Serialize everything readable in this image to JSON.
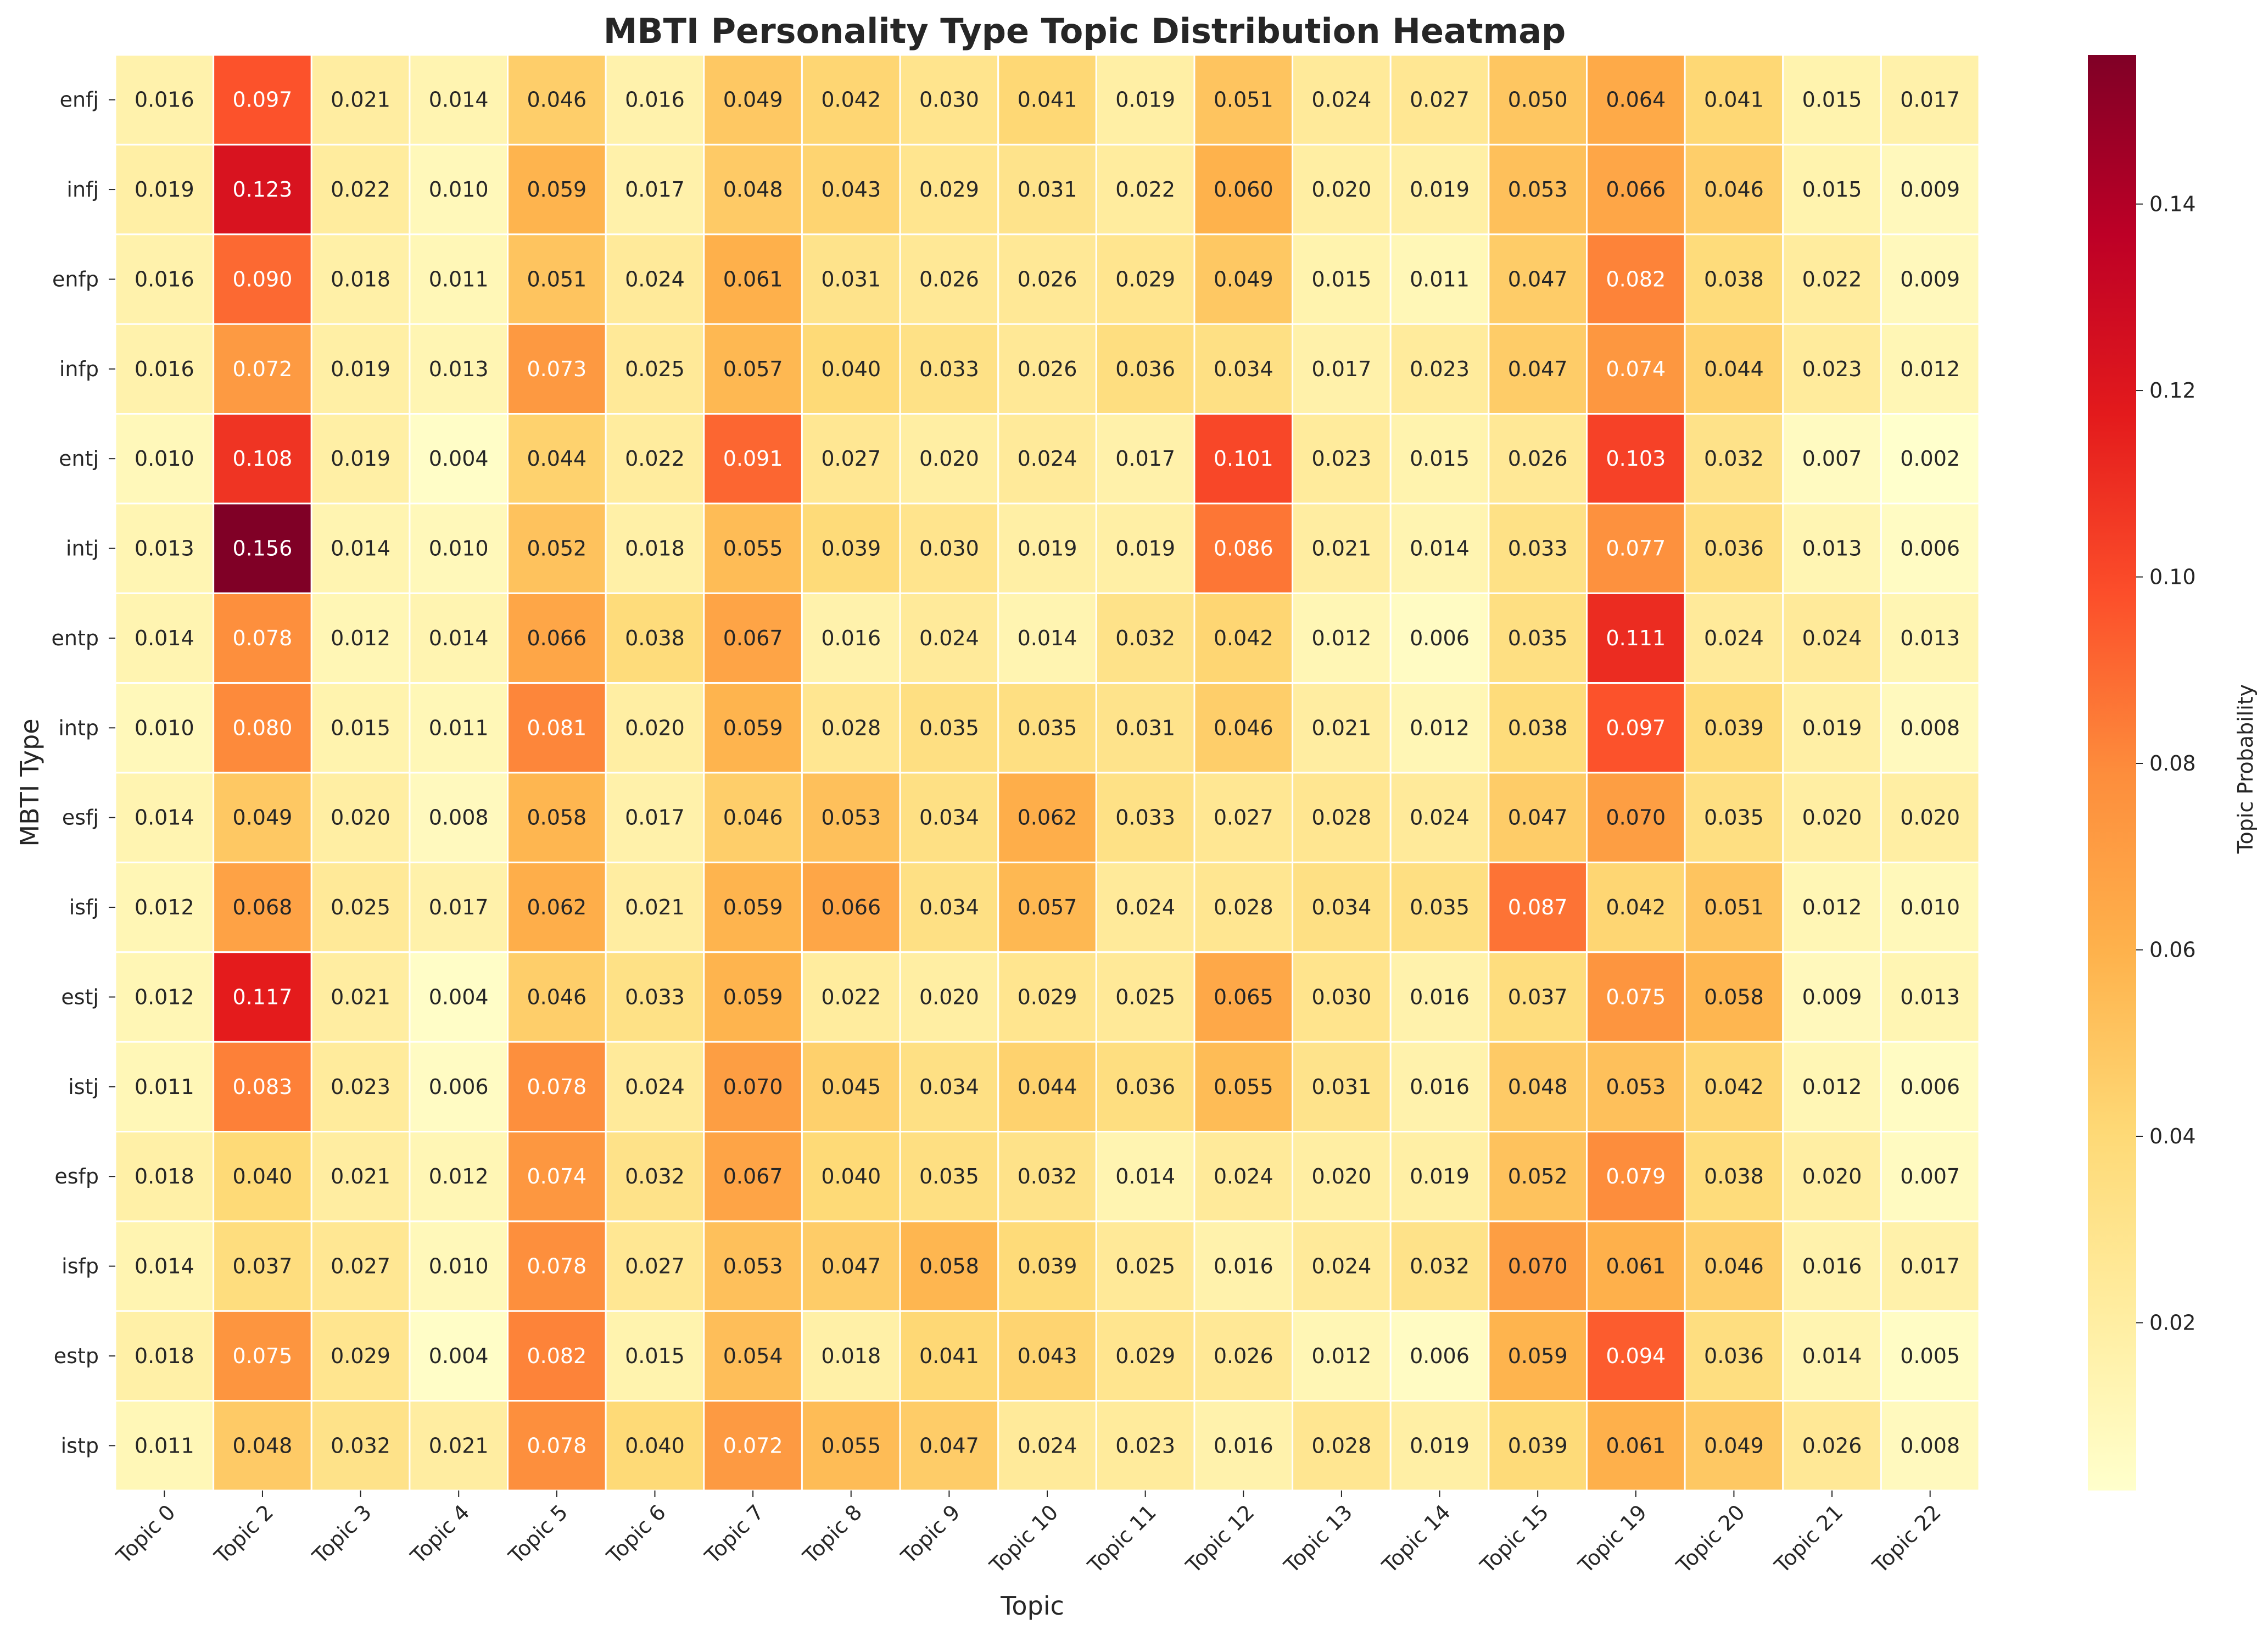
{
  "chart_data": {
    "type": "heatmap",
    "title": "MBTI Personality Type Topic Distribution Heatmap",
    "xlabel": "Topic",
    "ylabel": "MBTI Type",
    "colorbar_label": "Topic Probability",
    "colormap": "YlOrRd",
    "value_range": [
      0.002,
      0.156
    ],
    "colorbar_ticks": [
      "0.02",
      "0.04",
      "0.06",
      "0.08",
      "0.10",
      "0.12",
      "0.14"
    ],
    "x_categories": [
      "Topic 0",
      "Topic 2",
      "Topic 3",
      "Topic 4",
      "Topic 5",
      "Topic 6",
      "Topic 7",
      "Topic 8",
      "Topic 9",
      "Topic 10",
      "Topic 11",
      "Topic 12",
      "Topic 13",
      "Topic 14",
      "Topic 15",
      "Topic 19",
      "Topic 20",
      "Topic 21",
      "Topic 22"
    ],
    "y_categories": [
      "enfj",
      "infj",
      "enfp",
      "infp",
      "entj",
      "intj",
      "entp",
      "intp",
      "esfj",
      "isfj",
      "estj",
      "istj",
      "esfp",
      "isfp",
      "estp",
      "istp"
    ],
    "values": [
      [
        0.016,
        0.097,
        0.021,
        0.014,
        0.046,
        0.016,
        0.049,
        0.042,
        0.03,
        0.041,
        0.019,
        0.051,
        0.024,
        0.027,
        0.05,
        0.064,
        0.041,
        0.015,
        0.017
      ],
      [
        0.019,
        0.123,
        0.022,
        0.01,
        0.059,
        0.017,
        0.048,
        0.043,
        0.029,
        0.031,
        0.022,
        0.06,
        0.02,
        0.019,
        0.053,
        0.066,
        0.046,
        0.015,
        0.009
      ],
      [
        0.016,
        0.09,
        0.018,
        0.011,
        0.051,
        0.024,
        0.061,
        0.031,
        0.026,
        0.026,
        0.029,
        0.049,
        0.015,
        0.011,
        0.047,
        0.082,
        0.038,
        0.022,
        0.009
      ],
      [
        0.016,
        0.072,
        0.019,
        0.013,
        0.073,
        0.025,
        0.057,
        0.04,
        0.033,
        0.026,
        0.036,
        0.034,
        0.017,
        0.023,
        0.047,
        0.074,
        0.044,
        0.023,
        0.012
      ],
      [
        0.01,
        0.108,
        0.019,
        0.004,
        0.044,
        0.022,
        0.091,
        0.027,
        0.02,
        0.024,
        0.017,
        0.101,
        0.023,
        0.015,
        0.026,
        0.103,
        0.032,
        0.007,
        0.002
      ],
      [
        0.013,
        0.156,
        0.014,
        0.01,
        0.052,
        0.018,
        0.055,
        0.039,
        0.03,
        0.019,
        0.019,
        0.086,
        0.021,
        0.014,
        0.033,
        0.077,
        0.036,
        0.013,
        0.006
      ],
      [
        0.014,
        0.078,
        0.012,
        0.014,
        0.066,
        0.038,
        0.067,
        0.016,
        0.024,
        0.014,
        0.032,
        0.042,
        0.012,
        0.006,
        0.035,
        0.111,
        0.024,
        0.024,
        0.013
      ],
      [
        0.01,
        0.08,
        0.015,
        0.011,
        0.081,
        0.02,
        0.059,
        0.028,
        0.035,
        0.035,
        0.031,
        0.046,
        0.021,
        0.012,
        0.038,
        0.097,
        0.039,
        0.019,
        0.008
      ],
      [
        0.014,
        0.049,
        0.02,
        0.008,
        0.058,
        0.017,
        0.046,
        0.053,
        0.034,
        0.062,
        0.033,
        0.027,
        0.028,
        0.024,
        0.047,
        0.07,
        0.035,
        0.02,
        0.02
      ],
      [
        0.012,
        0.068,
        0.025,
        0.017,
        0.062,
        0.021,
        0.059,
        0.066,
        0.034,
        0.057,
        0.024,
        0.028,
        0.034,
        0.035,
        0.087,
        0.042,
        0.051,
        0.012,
        0.01
      ],
      [
        0.012,
        0.117,
        0.021,
        0.004,
        0.046,
        0.033,
        0.059,
        0.022,
        0.02,
        0.029,
        0.025,
        0.065,
        0.03,
        0.016,
        0.037,
        0.075,
        0.058,
        0.009,
        0.013
      ],
      [
        0.011,
        0.083,
        0.023,
        0.006,
        0.078,
        0.024,
        0.07,
        0.045,
        0.034,
        0.044,
        0.036,
        0.055,
        0.031,
        0.016,
        0.048,
        0.053,
        0.042,
        0.012,
        0.006
      ],
      [
        0.018,
        0.04,
        0.021,
        0.012,
        0.074,
        0.032,
        0.067,
        0.04,
        0.035,
        0.032,
        0.014,
        0.024,
        0.02,
        0.019,
        0.052,
        0.079,
        0.038,
        0.02,
        0.007
      ],
      [
        0.014,
        0.037,
        0.027,
        0.01,
        0.078,
        0.027,
        0.053,
        0.047,
        0.058,
        0.039,
        0.025,
        0.016,
        0.024,
        0.032,
        0.07,
        0.061,
        0.046,
        0.016,
        0.017
      ],
      [
        0.018,
        0.075,
        0.029,
        0.004,
        0.082,
        0.015,
        0.054,
        0.018,
        0.041,
        0.043,
        0.029,
        0.026,
        0.012,
        0.006,
        0.059,
        0.094,
        0.036,
        0.014,
        0.005
      ],
      [
        0.011,
        0.048,
        0.032,
        0.021,
        0.078,
        0.04,
        0.072,
        0.055,
        0.047,
        0.024,
        0.023,
        0.016,
        0.028,
        0.019,
        0.039,
        0.061,
        0.049,
        0.026,
        0.008
      ]
    ]
  }
}
